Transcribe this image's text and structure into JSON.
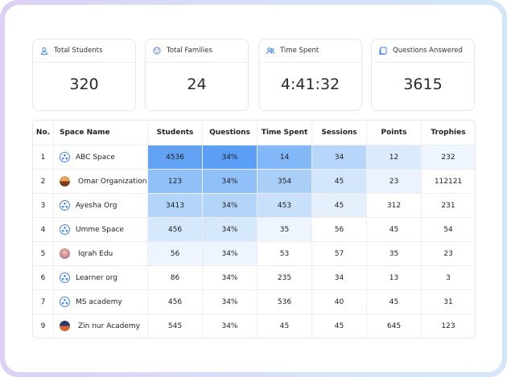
{
  "cards": [
    {
      "label": "Total Students",
      "value": 320
    },
    {
      "label": "Total Families",
      "value": 24
    },
    {
      "label": "Time Spent",
      "value": "4:41:32"
    },
    {
      "label": "Questions Answered",
      "value": 3615
    }
  ],
  "table": {
    "headers": [
      "No.",
      "Space Name",
      "Students",
      "Questions",
      "Time Spent",
      "Sessions",
      "Points",
      "Trophies"
    ],
    "rows": [
      [
        1,
        "ABC Space",
        4536,
        "34%",
        14,
        34,
        12,
        232
      ],
      [
        2,
        "Omar Organization",
        123,
        "34%",
        354,
        45,
        23,
        112121
      ],
      [
        3,
        "Ayesha Org",
        3413,
        "34%",
        453,
        45,
        312,
        231
      ],
      [
        4,
        "Umme Space",
        456,
        "34%",
        35,
        56,
        45,
        54
      ],
      [
        5,
        "Iqrah Edu",
        56,
        "34%",
        53,
        57,
        35,
        23
      ],
      [
        6,
        "Learner org",
        86,
        "34%",
        235,
        34,
        13,
        3
      ],
      [
        7,
        "MS academy",
        456,
        "34%",
        536,
        40,
        45,
        31
      ],
      [
        9,
        "Zin nur Academy",
        545,
        "34%",
        45,
        45,
        645,
        123
      ]
    ]
  }
}
